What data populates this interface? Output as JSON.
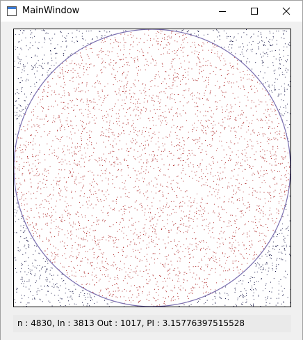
{
  "window": {
    "title": "MainWindow",
    "controls": {
      "minimize": "minimize-icon",
      "maximize": "maximize-icon",
      "close": "close-icon"
    }
  },
  "simulation": {
    "n": 4830,
    "in": 3813,
    "out": 1017,
    "pi_estimate": 3.15776397515528,
    "circle_color": "#7a6fb0",
    "inside_point_color": "#b03030",
    "outside_point_color": "#1a1a4a"
  },
  "status": {
    "text": "n : 4830, In : 3813 Out : 1017, PI : 3.15776397515528"
  }
}
